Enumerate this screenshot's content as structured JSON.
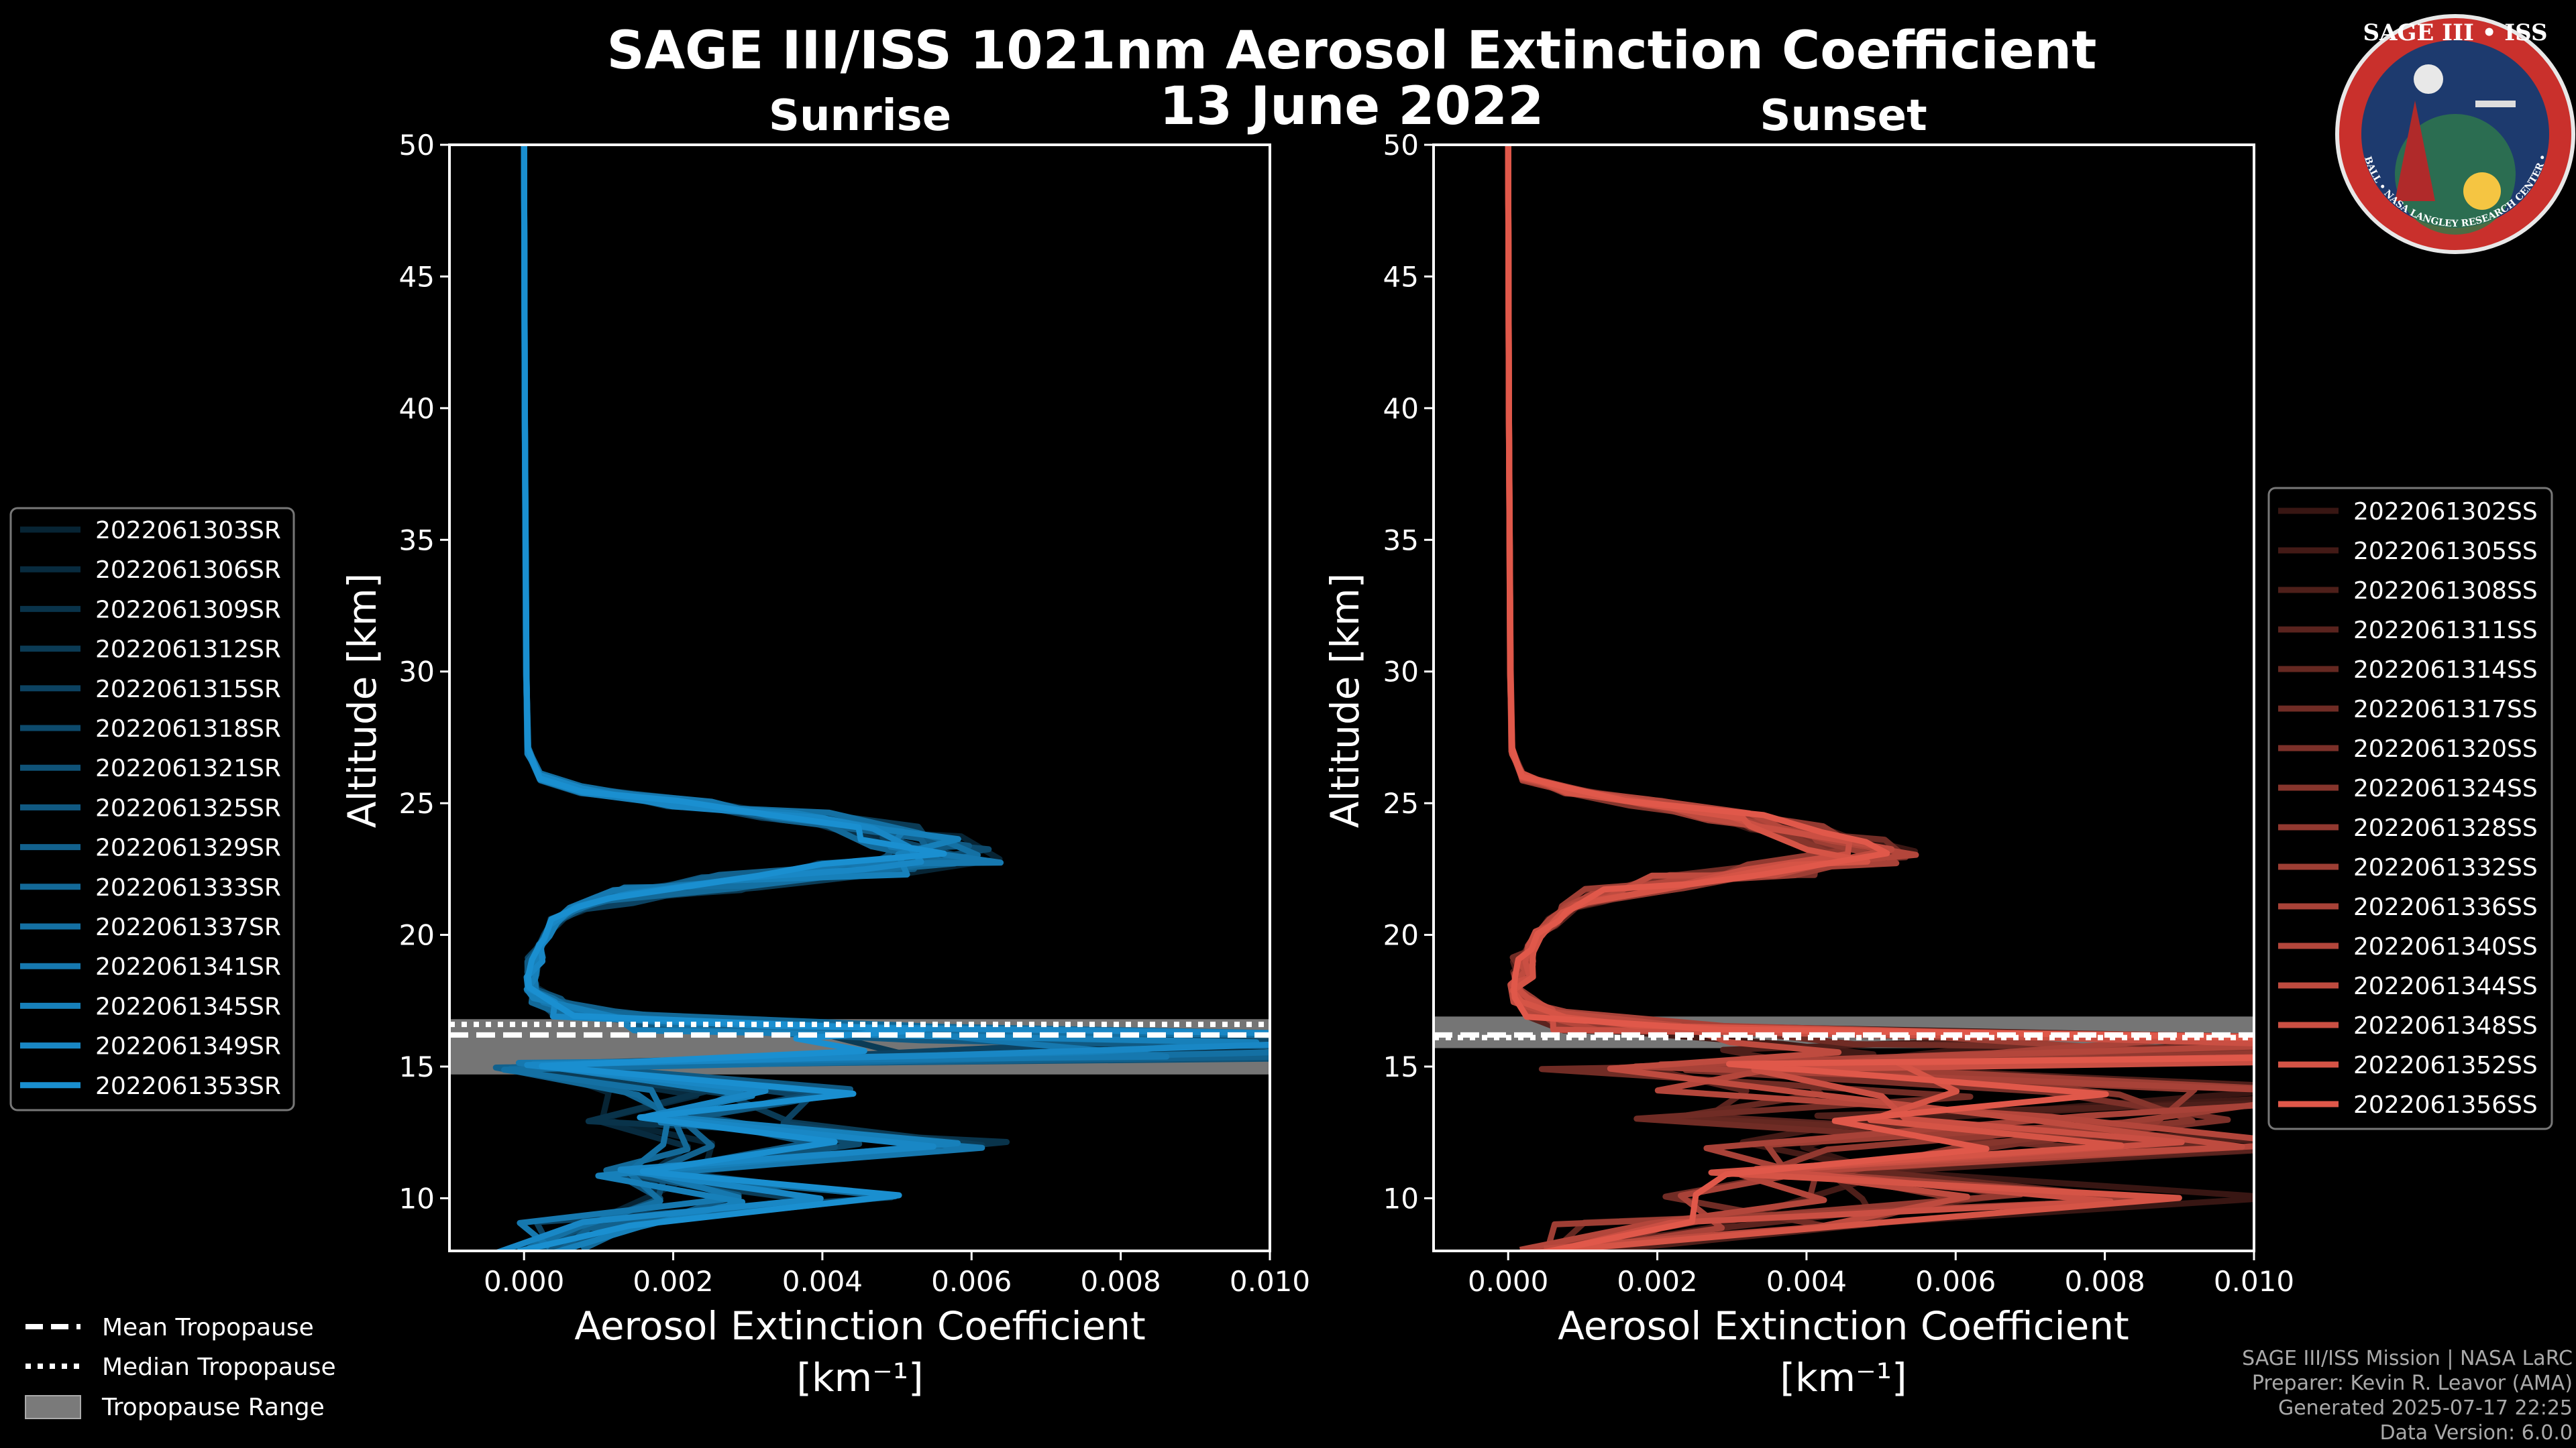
{
  "figure": {
    "title_line1": "SAGE III/ISS 1021nm Aerosol Extinction Coefficient",
    "title_line2": "13 June 2022",
    "footer": [
      "SAGE III/ISS Mission | NASA LaRC",
      "Preparer: Kevin R. Leavor (AMA)",
      "Generated 2025-07-17 22:25",
      "Data Version: 6.0.0"
    ],
    "logo": {
      "title": "SAGE III • ISS",
      "ring_text": "BALL • NASA LANGLEY RESEARCH CENTER • TAS-I • ESA"
    },
    "colors": {
      "sunrise": "#1a8fd0",
      "sunset": "#e0584a",
      "tropo_range": "#8a8a8a"
    }
  },
  "chart_data": [
    {
      "type": "line",
      "title": "Sunrise",
      "xlabel": "Aerosol Extinction Coefficient",
      "xunits": "[km⁻¹]",
      "ylabel": "Altitude [km]",
      "xlim": [
        -0.001,
        0.01
      ],
      "ylim": [
        8,
        50
      ],
      "xticks": [
        "0.000",
        "0.002",
        "0.004",
        "0.006",
        "0.008",
        "0.010"
      ],
      "yticks": [
        "10",
        "15",
        "20",
        "25",
        "30",
        "35",
        "40",
        "45",
        "50"
      ],
      "tropopause": {
        "mean": 16.2,
        "median": 16.6,
        "range": [
          14.7,
          16.8
        ]
      },
      "legend": [
        "2022061303SR",
        "2022061306SR",
        "2022061309SR",
        "2022061312SR",
        "2022061315SR",
        "2022061318SR",
        "2022061321SR",
        "2022061325SR",
        "2022061329SR",
        "2022061333SR",
        "2022061337SR",
        "2022061341SR",
        "2022061345SR",
        "2022061349SR",
        "2022061353SR"
      ],
      "profile": {
        "altitude": [
          50,
          40,
          30,
          27,
          26,
          25.5,
          25,
          24.5,
          24,
          23.5,
          23,
          22.5,
          22,
          21.5,
          21,
          20.5,
          20,
          19.5,
          19,
          18.5,
          18,
          17.5,
          17,
          16.5,
          16,
          15.5,
          15,
          14,
          13,
          12,
          11,
          10,
          9,
          8
        ],
        "extinction": [
          0.0,
          1e-05,
          3e-05,
          5e-05,
          0.0002,
          0.0008,
          0.0022,
          0.0036,
          0.0046,
          0.0052,
          0.0056,
          0.0046,
          0.0028,
          0.0013,
          0.0007,
          0.0004,
          0.0003,
          0.0002,
          0.00015,
          0.0001,
          0.0001,
          0.0003,
          0.0008,
          0.0035,
          0.0095,
          0.0098,
          0.0002,
          0.003,
          0.002,
          0.004,
          0.0015,
          0.003,
          0.001,
          0.0002
        ]
      }
    },
    {
      "type": "line",
      "title": "Sunset",
      "xlabel": "Aerosol Extinction Coefficient",
      "xunits": "[km⁻¹]",
      "ylabel": "Altitude [km]",
      "xlim": [
        -0.001,
        0.01
      ],
      "ylim": [
        8,
        50
      ],
      "xticks": [
        "0.000",
        "0.002",
        "0.004",
        "0.006",
        "0.008",
        "0.010"
      ],
      "yticks": [
        "10",
        "15",
        "20",
        "25",
        "30",
        "35",
        "40",
        "45",
        "50"
      ],
      "tropopause": {
        "mean": 16.2,
        "median": 16.1,
        "range": [
          15.7,
          16.9
        ]
      },
      "legend": [
        "2022061302SS",
        "2022061305SS",
        "2022061308SS",
        "2022061311SS",
        "2022061314SS",
        "2022061317SS",
        "2022061320SS",
        "2022061324SS",
        "2022061328SS",
        "2022061332SS",
        "2022061336SS",
        "2022061340SS",
        "2022061344SS",
        "2022061348SS",
        "2022061352SS",
        "2022061356SS"
      ],
      "profile": {
        "altitude": [
          50,
          40,
          30,
          27,
          26,
          25.5,
          25,
          24.5,
          24,
          23.5,
          23,
          22.5,
          22,
          21.5,
          21,
          20.5,
          20,
          19.5,
          19,
          18.5,
          18,
          17.5,
          17,
          16.5,
          16,
          15.5,
          15,
          14,
          13,
          12,
          11,
          10,
          9,
          8
        ],
        "extinction": [
          0.0,
          1e-05,
          3e-05,
          5e-05,
          0.0002,
          0.0007,
          0.0018,
          0.003,
          0.0038,
          0.0045,
          0.0048,
          0.0036,
          0.0022,
          0.0012,
          0.0008,
          0.0006,
          0.0004,
          0.0003,
          0.0002,
          0.0002,
          0.0001,
          0.0002,
          0.0005,
          0.002,
          0.0095,
          0.0098,
          0.003,
          0.008,
          0.006,
          0.007,
          0.0045,
          0.006,
          0.003,
          0.0005
        ]
      }
    }
  ],
  "tropopause_legend": [
    "Mean Tropopause",
    "Median Tropopause",
    "Tropopause Range"
  ]
}
